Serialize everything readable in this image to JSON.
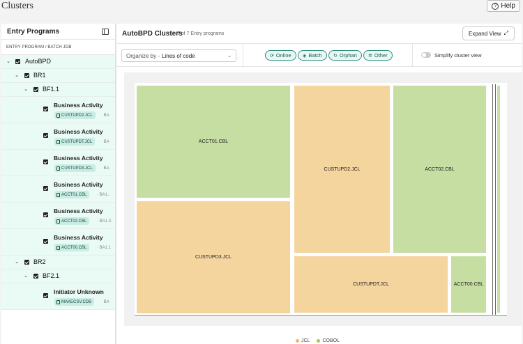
{
  "app": {
    "title": "Clusters",
    "help_label": "Help"
  },
  "left_panel": {
    "title": "Entry Programs",
    "column_header": "ENTRY PROGRAM / BATCH JOB",
    "root": "AutoBPD",
    "groups": [
      {
        "label": "BR1",
        "subgroup": "BF1.1",
        "leaves": [
          {
            "title": "Business Activity",
            "chip": "CUSTUPD2.JCL",
            "ba": "BA"
          },
          {
            "title": "Business Activity",
            "chip": "CUSTUPDT.JCL",
            "ba": "BA"
          },
          {
            "title": "Business Activity",
            "chip": "CUSTUPD3.JCL",
            "ba": "BA"
          },
          {
            "title": "Business Activity",
            "chip": "ACCT01.CBL",
            "ba": "BA1.:"
          },
          {
            "title": "Business Activity",
            "chip": "ACCT02.CBL",
            "ba": "BA1.3."
          },
          {
            "title": "Business Activity",
            "chip": "ACCT00.CBL",
            "ba": "BA1.1"
          }
        ]
      },
      {
        "label": "BR2",
        "subgroup": "BF2.1",
        "leaves": [
          {
            "title": "Initiator Unknown",
            "chip": "MAKECSV.CDB",
            "ba": "BA"
          }
        ]
      }
    ]
  },
  "right_panel": {
    "title": "AutoBPD Clusters",
    "subtitle": "7 of 7 Entry programs",
    "expand_label": "Expand View",
    "organize_prefix": "Organize by -",
    "organize_value": "Lines of code",
    "filters": [
      {
        "label": "Online",
        "icon": "online-icon"
      },
      {
        "label": "Batch",
        "icon": "batch-icon"
      },
      {
        "label": "Orphan",
        "icon": "orphan-icon"
      },
      {
        "label": "Other",
        "icon": "other-icon"
      }
    ],
    "simplify_label": "Simplify cluster view",
    "simplify_on": false
  },
  "treemap": {
    "tiles": [
      {
        "label": "ACCT01.CBL",
        "type": "COBOL"
      },
      {
        "label": "CUSTUPD3.JCL",
        "type": "JCL"
      },
      {
        "label": "CUSTUPD2.JCL",
        "type": "JCL"
      },
      {
        "label": "ACCT02.CBL",
        "type": "COBOL"
      },
      {
        "label": "CUSTUPDT.JCL",
        "type": "JCL"
      },
      {
        "label": "ACCT00.CBL",
        "type": "COBOL"
      }
    ]
  },
  "legend": [
    {
      "label": "JCL",
      "color": "#f0b862"
    },
    {
      "label": "COBOL",
      "color": "#9ccc65"
    }
  ]
}
